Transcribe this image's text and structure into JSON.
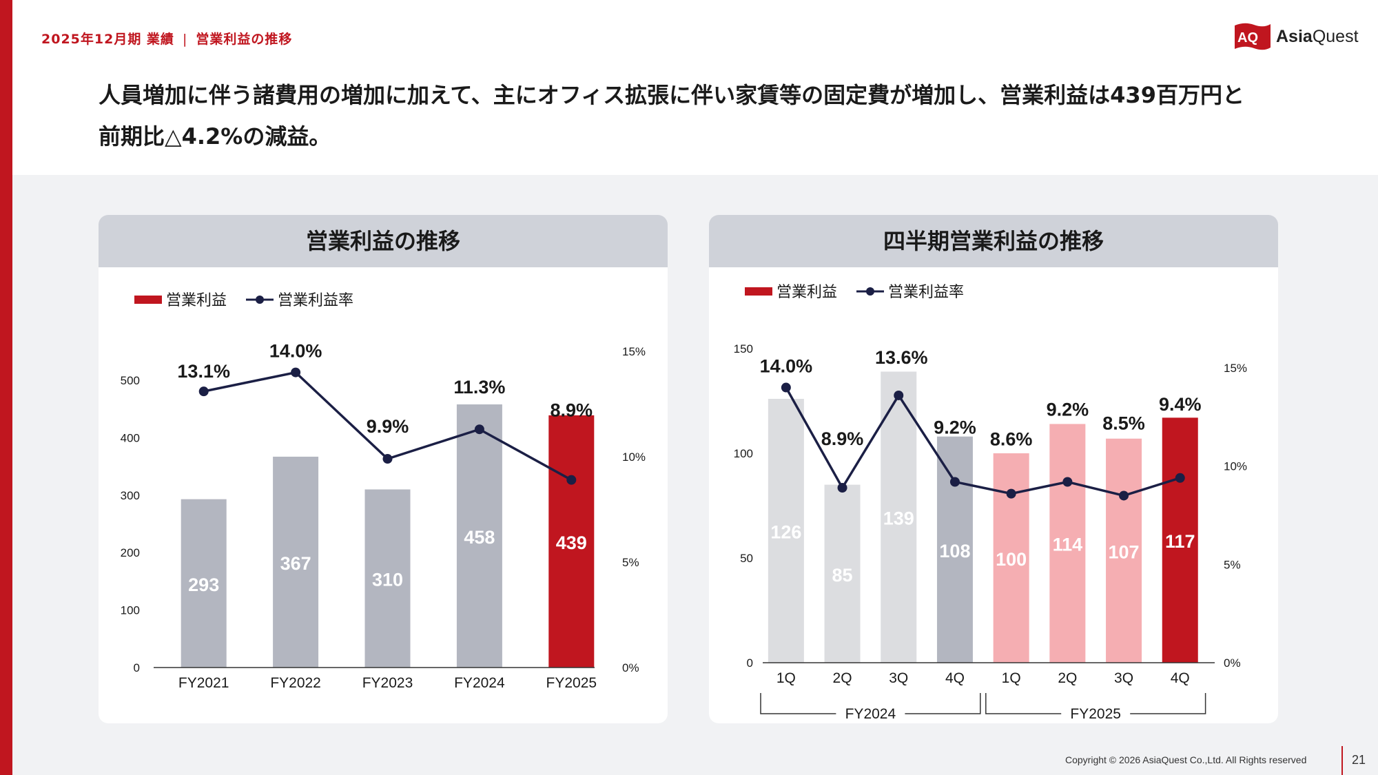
{
  "header": {
    "breadcrumb_left": "2025年12月期 業績",
    "breadcrumb_right": "営業利益の推移",
    "logo_text_a": "Asia",
    "logo_text_b": "Quest",
    "logo_mark": "AQ"
  },
  "headline_line1": "人員増加に伴う諸費用の増加に加えて、主にオフィス拡張に伴い家賃等の固定費が増加し、営業利益は439百万円と",
  "headline_line2": "前期比△4.2%の減益。",
  "footer": {
    "copyright": "Copyright © 2026 AsiaQuest Co.,Ltd. All Rights reserved",
    "page": "21"
  },
  "colors": {
    "accent_red": "#c0161f",
    "bar_gray": "#b3b6c0",
    "bar_light_gray": "#dcdde0",
    "bar_pink": "#f5aeb2",
    "line_navy": "#1b1f45"
  },
  "chart_data": [
    {
      "type": "bar",
      "title": "営業利益の推移",
      "legend": {
        "bar": "営業利益",
        "line": "営業利益率",
        "placement": "top-left"
      },
      "categories": [
        "FY2021",
        "FY2022",
        "FY2023",
        "FY2024",
        "FY2025"
      ],
      "series": [
        {
          "name": "営業利益",
          "type": "bar",
          "axis": "left",
          "values": [
            293,
            367,
            310,
            458,
            439
          ],
          "colors": [
            "#b3b6c0",
            "#b3b6c0",
            "#b3b6c0",
            "#b3b6c0",
            "#c0161f"
          ]
        },
        {
          "name": "営業利益率",
          "type": "line",
          "axis": "right",
          "values": [
            13.1,
            14.0,
            9.9,
            11.3,
            8.9
          ],
          "labels": [
            "13.1%",
            "14.0%",
            "9.9%",
            "11.3%",
            "8.9%"
          ]
        }
      ],
      "y_left": {
        "min": 0,
        "max": 500,
        "ticks": [
          0,
          100,
          200,
          300,
          400,
          500
        ]
      },
      "y_right": {
        "min": 0,
        "max": 15,
        "ticks": [
          "0%",
          "5%",
          "10%",
          "15%"
        ],
        "tick_values": [
          0,
          5,
          10,
          15
        ]
      },
      "grid": false
    },
    {
      "type": "bar",
      "title": "四半期営業利益の推移",
      "legend": {
        "bar": "営業利益",
        "line": "営業利益率",
        "placement": "top-left"
      },
      "categories": [
        "1Q",
        "2Q",
        "3Q",
        "4Q",
        "1Q",
        "2Q",
        "3Q",
        "4Q"
      ],
      "groups": [
        {
          "label": "FY2024",
          "from": 0,
          "to": 3
        },
        {
          "label": "FY2025",
          "from": 4,
          "to": 7
        }
      ],
      "series": [
        {
          "name": "営業利益",
          "type": "bar",
          "axis": "left",
          "values": [
            126,
            85,
            139,
            108,
            100,
            114,
            107,
            117
          ],
          "colors": [
            "#dcdde0",
            "#dcdde0",
            "#dcdde0",
            "#b3b6c0",
            "#f5aeb2",
            "#f5aeb2",
            "#f5aeb2",
            "#c0161f"
          ]
        },
        {
          "name": "営業利益率",
          "type": "line",
          "axis": "right",
          "values": [
            14.0,
            8.9,
            13.6,
            9.2,
            8.6,
            9.2,
            8.5,
            9.4
          ],
          "labels": [
            "14.0%",
            "8.9%",
            "13.6%",
            "9.2%",
            "8.6%",
            "9.2%",
            "8.5%",
            "9.4%"
          ]
        }
      ],
      "y_left": {
        "min": 0,
        "max": 150,
        "ticks": [
          0,
          50,
          100,
          150
        ]
      },
      "y_right": {
        "min": 0,
        "max": 15,
        "ticks": [
          "0%",
          "5%",
          "10%",
          "15%"
        ],
        "tick_values": [
          0,
          5,
          10,
          15
        ]
      },
      "grid": false
    }
  ]
}
